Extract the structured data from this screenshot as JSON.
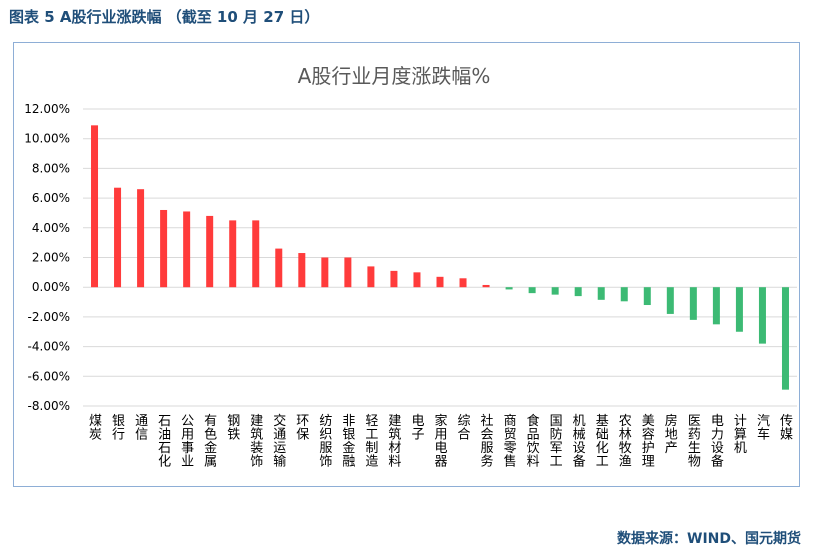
{
  "caption": "图表 5 A股行业涨跌幅 （截至 10 月 27 日）",
  "source": "数据来源：WIND、国元期货",
  "colors": {
    "positive": "#ff3b3b",
    "negative": "#3cba74",
    "text": "#1f4e79",
    "grid": "#d9d9d9",
    "frame": "#8eaed6"
  },
  "chart_data": {
    "type": "bar",
    "title": "A股行业月度涨跌幅%",
    "xlabel": "",
    "ylabel": "",
    "ylim": [
      -8,
      12
    ],
    "yticks": [
      12,
      10,
      8,
      6,
      4,
      2,
      0,
      -2,
      -4,
      -6,
      -8
    ],
    "ytick_labels": [
      "12.00%",
      "10.00%",
      "8.00%",
      "6.00%",
      "4.00%",
      "2.00%",
      "0.00%",
      "-2.00%",
      "-4.00%",
      "-6.00%",
      "-8.00%"
    ],
    "grid": true,
    "legend": "none",
    "categories": [
      "煤炭",
      "银行",
      "通信",
      "石油石化",
      "公用事业",
      "有色金属",
      "钢铁",
      "建筑装饰",
      "交通运输",
      "环保",
      "纺织服饰",
      "非银金融",
      "轻工制造",
      "建筑材料",
      "电子",
      "家用电器",
      "综合",
      "社会服务",
      "商贸零售",
      "食品饮料",
      "国防军工",
      "机械设备",
      "基础化工",
      "农林牧渔",
      "美容护理",
      "房地产",
      "医药生物",
      "电力设备",
      "计算机",
      "汽车",
      "传媒"
    ],
    "values": [
      10.9,
      6.7,
      6.6,
      5.2,
      5.1,
      4.8,
      4.5,
      4.5,
      2.6,
      2.3,
      2.0,
      2.0,
      1.4,
      1.1,
      1.0,
      0.7,
      0.6,
      0.15,
      -0.15,
      -0.4,
      -0.5,
      -0.6,
      -0.85,
      -0.95,
      -1.2,
      -1.8,
      -2.2,
      -2.5,
      -3.0,
      -3.8,
      -6.9
    ]
  }
}
